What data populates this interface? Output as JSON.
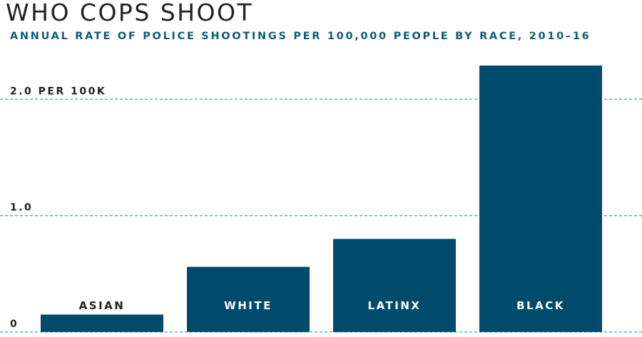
{
  "chart_data": {
    "type": "bar",
    "title": "WHO COPS SHOOT",
    "subtitle": "ANNUAL RATE OF POLICE SHOOTINGS PER 100,000 PEOPLE BY RACE, 2010–16",
    "categories": [
      "ASIAN",
      "WHITE",
      "LATINX",
      "BLACK"
    ],
    "values": [
      0.15,
      0.56,
      0.8,
      2.29
    ],
    "ylim": [
      0,
      2.29
    ],
    "yticks": [
      {
        "value": 0,
        "label": "0"
      },
      {
        "value": 1,
        "label": "1.0"
      },
      {
        "value": 2,
        "label": "2.0 PER 100K"
      }
    ],
    "grid": true,
    "colors": {
      "bar": "#004b6b",
      "grid": "#3aa6cc",
      "label_on_bar": "#ffffff",
      "label_off_bar": "#222222"
    }
  }
}
